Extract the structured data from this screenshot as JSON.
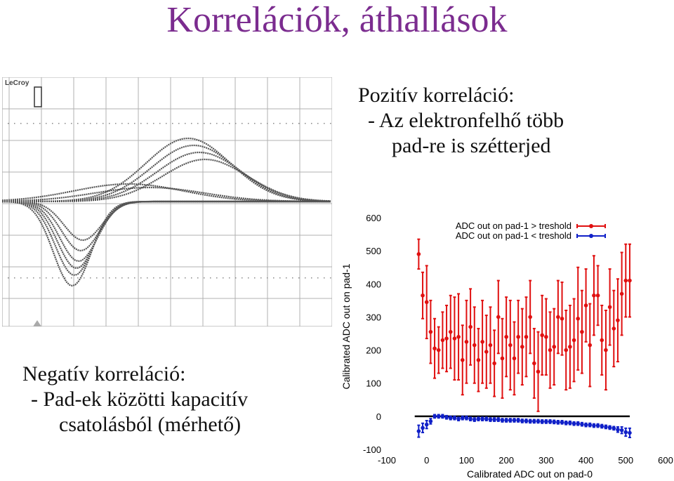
{
  "slide": {
    "title": "Korrelációk, áthallások",
    "scope_label": "LeCroy",
    "right_text": [
      "Pozitív korreláció:",
      "- Az elektronfelhő több",
      "pad-re is szétterjed"
    ],
    "left_text": [
      "Negatív korreláció:",
      "- Pad-ek közötti kapacitív",
      "csatolásból (mérhető)"
    ]
  },
  "chart_data": {
    "type": "scatter",
    "xlabel": "Calibrated ADC out on pad-0",
    "ylabel": "Calibrated ADC out on pad-1",
    "xlim": [
      -100,
      600
    ],
    "ylim": [
      -100,
      600
    ],
    "xticks": [
      "-100",
      "0",
      "100",
      "200",
      "300",
      "400",
      "500",
      "600"
    ],
    "yticks": [
      "-100",
      "0",
      "100",
      "200",
      "300",
      "400",
      "500",
      "600"
    ],
    "legend_position": "top-right",
    "series": [
      {
        "name": "ADC out on pad-1 > treshold",
        "color": "#e01010",
        "x": [
          -20,
          -10,
          0,
          10,
          20,
          30,
          40,
          50,
          60,
          70,
          80,
          90,
          100,
          110,
          120,
          130,
          140,
          150,
          160,
          170,
          180,
          190,
          200,
          210,
          220,
          230,
          240,
          250,
          260,
          270,
          280,
          290,
          300,
          310,
          320,
          330,
          340,
          350,
          360,
          370,
          380,
          390,
          400,
          410,
          420,
          430,
          440,
          450,
          460,
          470,
          480,
          490,
          500,
          510
        ],
        "y": [
          490,
          365,
          345,
          255,
          205,
          200,
          230,
          235,
          255,
          235,
          240,
          170,
          225,
          270,
          215,
          170,
          225,
          195,
          215,
          160,
          300,
          175,
          240,
          215,
          175,
          240,
          210,
          240,
          300,
          160,
          135,
          245,
          240,
          200,
          210,
          300,
          295,
          200,
          210,
          230,
          295,
          255,
          335,
          215,
          365,
          365,
          230,
          200,
          330,
          265,
          290,
          370,
          410,
          410
        ],
        "err": [
          45,
          70,
          110,
          95,
          90,
          70,
          85,
          100,
          110,
          125,
          130,
          105,
          125,
          115,
          115,
          95,
          125,
          110,
          115,
          100,
          110,
          120,
          120,
          135,
          110,
          110,
          115,
          120,
          110,
          105,
          120,
          120,
          115,
          115,
          115,
          110,
          110,
          120,
          125,
          125,
          155,
          125,
          110,
          125,
          120,
          90,
          105,
          120,
          115,
          115,
          125,
          125,
          110,
          110
        ]
      },
      {
        "name": "ADC out on pad-1 < treshold",
        "color": "#1020c8",
        "x": [
          -20,
          -10,
          0,
          10,
          20,
          30,
          40,
          50,
          60,
          70,
          80,
          90,
          100,
          110,
          120,
          130,
          140,
          150,
          160,
          170,
          180,
          190,
          200,
          210,
          220,
          230,
          240,
          250,
          260,
          270,
          280,
          290,
          300,
          310,
          320,
          330,
          340,
          350,
          360,
          370,
          380,
          390,
          400,
          410,
          420,
          430,
          440,
          450,
          460,
          470,
          480,
          490,
          500,
          510
        ],
        "y": [
          -45,
          -35,
          -25,
          -15,
          0,
          0,
          0,
          -3,
          -5,
          -5,
          -8,
          -5,
          -5,
          -8,
          -10,
          -8,
          -8,
          -8,
          -10,
          -10,
          -10,
          -12,
          -12,
          -12,
          -12,
          -12,
          -14,
          -14,
          -15,
          -15,
          -15,
          -16,
          -16,
          -16,
          -17,
          -18,
          -18,
          -20,
          -20,
          -22,
          -22,
          -24,
          -26,
          -26,
          -28,
          -28,
          -30,
          -32,
          -34,
          -36,
          -40,
          -42,
          -48,
          -50
        ],
        "err": [
          18,
          14,
          12,
          8,
          5,
          5,
          5,
          5,
          5,
          5,
          5,
          5,
          5,
          5,
          5,
          5,
          5,
          5,
          5,
          5,
          5,
          5,
          5,
          5,
          5,
          5,
          5,
          5,
          5,
          5,
          5,
          5,
          5,
          5,
          5,
          5,
          5,
          5,
          5,
          5,
          5,
          5,
          5,
          5,
          5,
          5,
          5,
          5,
          5,
          5,
          8,
          10,
          12,
          14
        ]
      }
    ],
    "reference_line": {
      "y": 0,
      "x_from": -30,
      "x_to": 510,
      "color": "#000000"
    }
  }
}
